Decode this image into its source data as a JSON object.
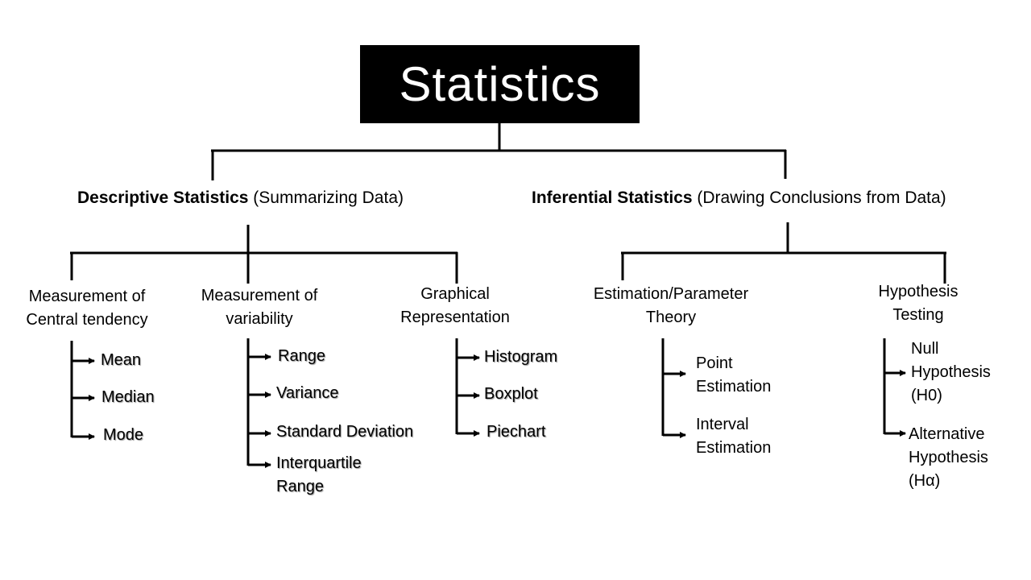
{
  "title": "Statistics",
  "descriptive": {
    "label_bold": "Descriptive Statistics",
    "label_rest": " (Summarizing Data)",
    "groups": [
      {
        "lines": [
          "Measurement of",
          "Central tendency"
        ],
        "items": [
          [
            "Mean"
          ],
          [
            "Median"
          ],
          [
            "Mode"
          ]
        ]
      },
      {
        "lines": [
          "Measurement of",
          "variability"
        ],
        "items": [
          [
            "Range"
          ],
          [
            "Variance"
          ],
          [
            "Standard Deviation"
          ],
          [
            "Interquartile",
            "Range"
          ]
        ]
      },
      {
        "lines": [
          "Graphical",
          "Representation"
        ],
        "items": [
          [
            "Histogram"
          ],
          [
            "Boxplot"
          ],
          [
            "Piechart"
          ]
        ]
      }
    ]
  },
  "inferential": {
    "label_bold": "Inferential Statistics",
    "label_rest": " (Drawing Conclusions from Data)",
    "groups": [
      {
        "lines": [
          "Estimation/Parameter",
          "Theory"
        ],
        "items": [
          [
            "Point",
            "Estimation"
          ],
          [
            "Interval",
            "Estimation"
          ]
        ]
      },
      {
        "lines": [
          "Hypothesis",
          "Testing"
        ],
        "items": [
          [
            "Null",
            "Hypothesis",
            "(H0)"
          ],
          [
            "Alternative",
            "Hypothesis",
            "(Hα)"
          ]
        ]
      }
    ]
  }
}
